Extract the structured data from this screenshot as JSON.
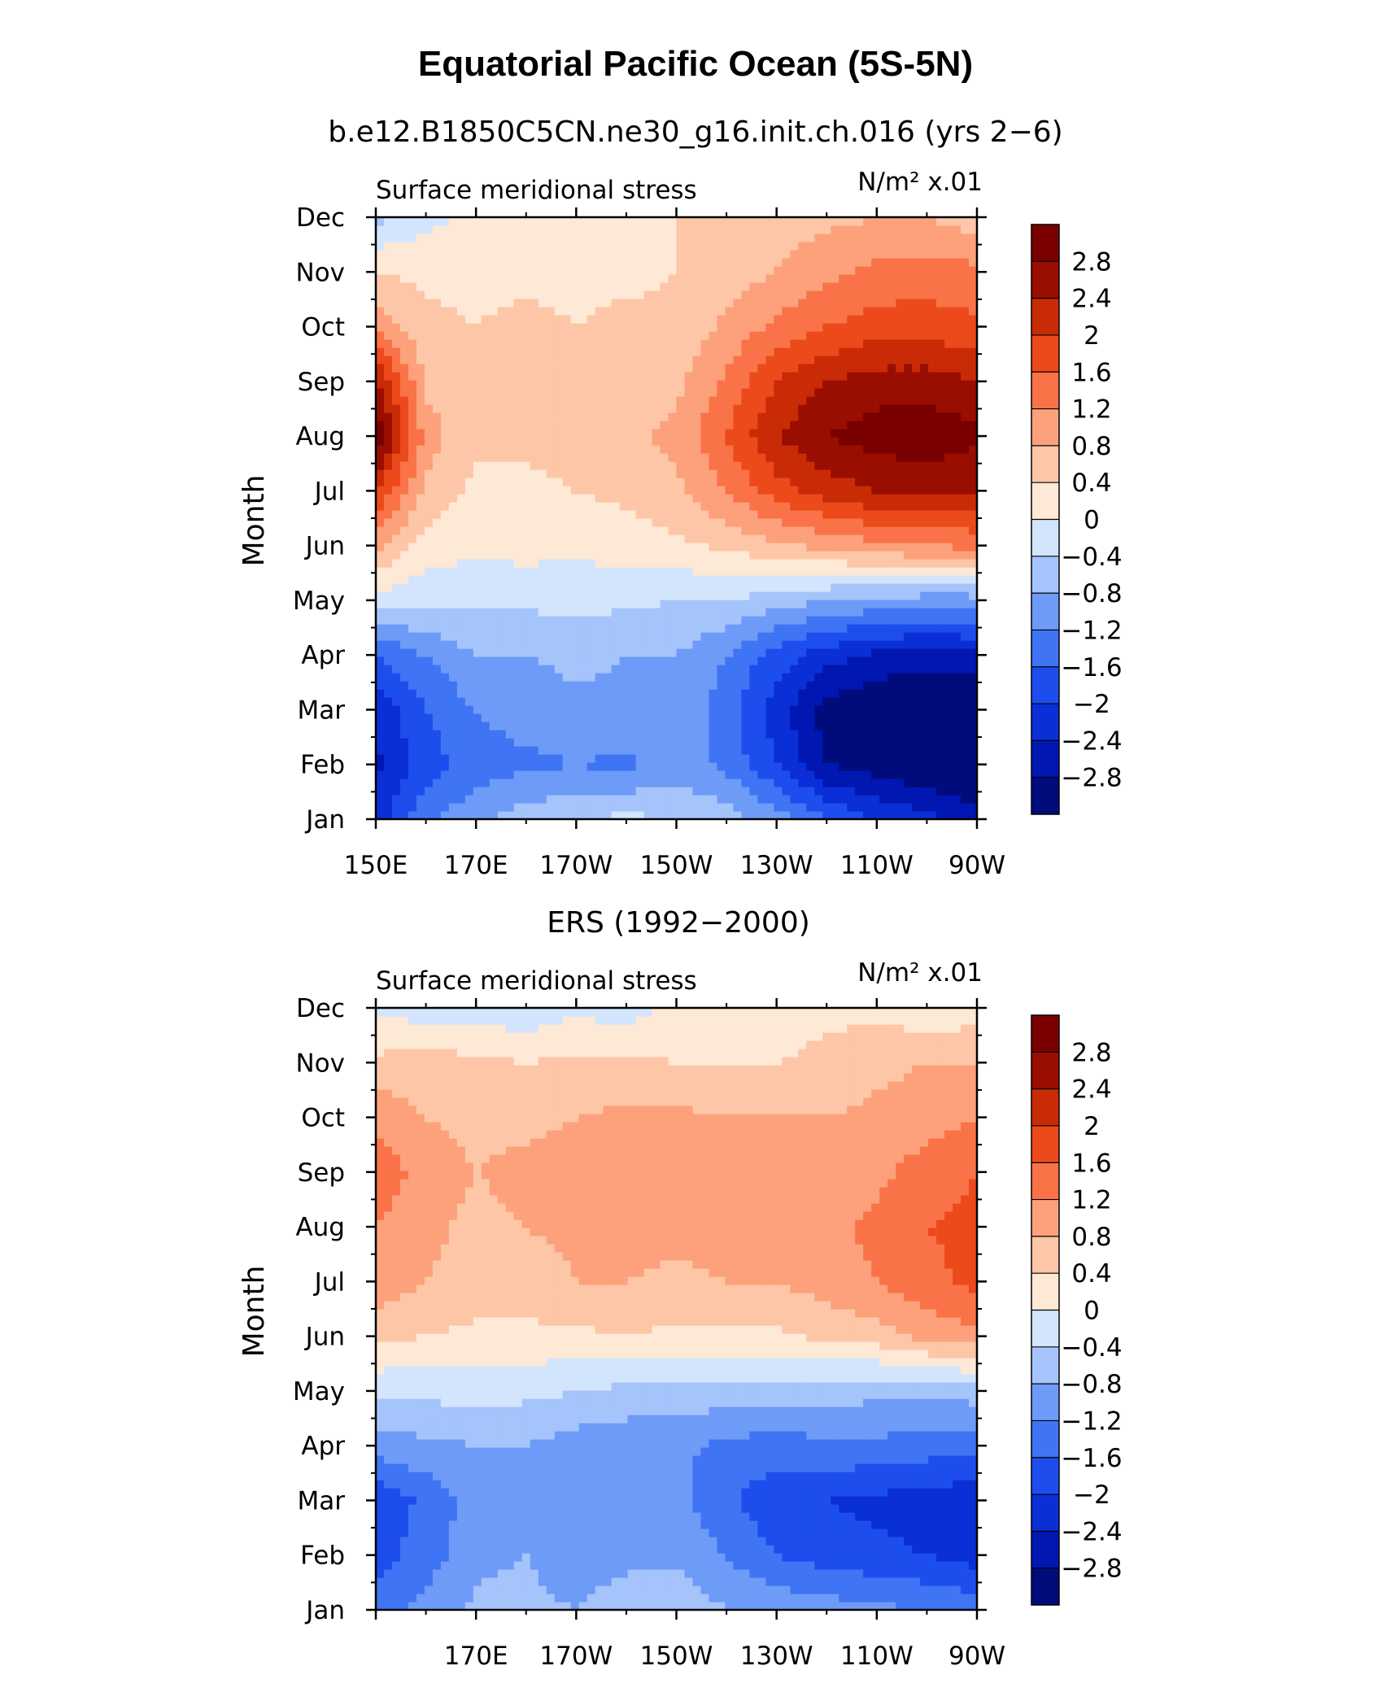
{
  "title": "Equatorial Pacific Ocean (5S-5N)",
  "palette": [
    "#000c7c",
    "#0017b2",
    "#0a2fd6",
    "#1d4eed",
    "#3f75f4",
    "#6e9bf8",
    "#a5c4fb",
    "#d3e5fd",
    "#fee8d6",
    "#fdc6a7",
    "#fca17b",
    "#fa7348",
    "#ec4a1b",
    "#c92b06",
    "#990e00",
    "#7a0000"
  ],
  "colorbar": {
    "labels": [
      "2.8",
      "2.4",
      "2",
      "1.6",
      "1.2",
      "0.8",
      "0.4",
      "0",
      "−0.4",
      "−0.8",
      "−1.2",
      "−1.6",
      "−2",
      "−2.4",
      "−2.8"
    ]
  },
  "chart_data": [
    {
      "type": "heatmap",
      "title": "b.e12.B1850C5CN.ne30_g16.init.ch.016 (yrs 2−6)",
      "left_label": "Surface meridional stress",
      "units_label": "N/m² x.01",
      "ylabel": "Month",
      "x_ticks": [
        "150E",
        "170E",
        "170W",
        "150W",
        "130W",
        "110W",
        "90W"
      ],
      "y_ticks": [
        "Jan",
        "Feb",
        "Mar",
        "Apr",
        "May",
        "Jun",
        "Jul",
        "Aug",
        "Sep",
        "Oct",
        "Nov",
        "Dec"
      ],
      "x_deg": [
        150,
        160,
        170,
        180,
        190,
        200,
        210,
        220,
        230,
        240,
        250,
        260,
        270
      ],
      "values": [
        [
          -2.2,
          -1.3,
          -0.9,
          -0.6,
          -0.4,
          -0.3,
          -0.4,
          -0.6,
          -1.0,
          -1.6,
          -2.0,
          -2.3,
          -2.6
        ],
        [
          -2.5,
          -1.8,
          -1.4,
          -1.3,
          -1.2,
          -1.3,
          -1.0,
          -1.3,
          -2.0,
          -2.8,
          -3.0,
          -3.2,
          -3.3
        ],
        [
          -2.3,
          -1.6,
          -1.2,
          -1.0,
          -0.9,
          -0.9,
          -0.9,
          -1.4,
          -2.2,
          -3.0,
          -3.2,
          -3.4,
          -3.4
        ],
        [
          -1.6,
          -1.2,
          -0.8,
          -0.8,
          -0.7,
          -0.8,
          -0.8,
          -1.2,
          -1.8,
          -2.2,
          -2.5,
          -2.6,
          -2.5
        ],
        [
          -0.2,
          -0.3,
          -0.3,
          -0.3,
          -0.3,
          -0.3,
          -0.4,
          -0.4,
          -0.6,
          -0.8,
          -0.9,
          -1.0,
          -1.0
        ],
        [
          0.9,
          0.2,
          0.1,
          0.15,
          0.1,
          0.2,
          0.3,
          0.5,
          0.7,
          0.9,
          1.1,
          1.2,
          1.3
        ],
        [
          2.0,
          0.7,
          0.3,
          0.3,
          0.4,
          0.5,
          0.7,
          1.2,
          1.8,
          2.2,
          2.4,
          2.5,
          2.4
        ],
        [
          3.2,
          1.0,
          0.5,
          0.5,
          0.6,
          0.7,
          0.9,
          1.6,
          2.4,
          2.8,
          3.0,
          3.1,
          2.9
        ],
        [
          2.5,
          0.7,
          0.5,
          0.5,
          0.5,
          0.6,
          0.7,
          1.3,
          2.0,
          2.4,
          2.6,
          2.6,
          2.4
        ],
        [
          1.1,
          0.5,
          0.4,
          0.5,
          0.4,
          0.5,
          0.5,
          0.9,
          1.3,
          1.6,
          1.8,
          1.8,
          1.7
        ],
        [
          0.4,
          0.3,
          0.3,
          0.3,
          0.3,
          0.3,
          0.4,
          0.6,
          0.8,
          1.1,
          1.3,
          1.4,
          1.3
        ],
        [
          -0.5,
          -0.1,
          0.1,
          0.2,
          0.2,
          0.3,
          0.4,
          0.5,
          0.6,
          0.7,
          0.8,
          0.8,
          0.6
        ]
      ]
    },
    {
      "type": "heatmap",
      "title": "ERS (1992−2000)",
      "left_label": "Surface meridional stress",
      "units_label": "N/m² x.01",
      "ylabel": "Month",
      "x_ticks": [
        "170E",
        "170W",
        "150W",
        "130W",
        "110W",
        "90W"
      ],
      "y_ticks": [
        "Jan",
        "Feb",
        "Mar",
        "Apr",
        "May",
        "Jun",
        "Jul",
        "Aug",
        "Sep",
        "Oct",
        "Nov",
        "Dec"
      ],
      "x_deg": [
        150,
        160,
        170,
        180,
        190,
        200,
        210,
        220,
        230,
        240,
        250,
        260,
        270
      ],
      "values": [
        [
          -1.3,
          -1.1,
          -0.7,
          -0.7,
          -0.8,
          -0.6,
          -0.5,
          -0.8,
          -0.9,
          -1.0,
          -1.1,
          -1.2,
          -1.3
        ],
        [
          -1.8,
          -1.4,
          -0.9,
          -0.8,
          -1.0,
          -0.9,
          -0.9,
          -1.2,
          -1.6,
          -1.8,
          -1.9,
          -2.0,
          -2.2
        ],
        [
          -1.9,
          -1.5,
          -1.0,
          -0.9,
          -1.0,
          -1.0,
          -1.1,
          -1.5,
          -1.9,
          -2.0,
          -2.1,
          -2.2,
          -2.3
        ],
        [
          -1.0,
          -0.9,
          -0.8,
          -0.8,
          -1.0,
          -1.1,
          -1.1,
          -1.3,
          -1.4,
          -1.3,
          -1.3,
          -1.4,
          -1.5
        ],
        [
          -0.3,
          -0.3,
          -0.2,
          -0.3,
          -0.4,
          -0.5,
          -0.5,
          -0.6,
          -0.6,
          -0.6,
          -0.7,
          -0.7,
          -0.6
        ],
        [
          0.5,
          0.4,
          0.3,
          0.3,
          0.3,
          0.4,
          0.3,
          0.3,
          0.3,
          0.5,
          0.6,
          0.9,
          1.1
        ],
        [
          1.1,
          0.8,
          0.6,
          0.6,
          0.8,
          0.8,
          0.7,
          0.8,
          0.8,
          1.0,
          1.2,
          1.5,
          1.7
        ],
        [
          1.2,
          0.9,
          0.7,
          0.8,
          0.9,
          1.0,
          0.9,
          1.0,
          1.0,
          1.1,
          1.3,
          1.6,
          1.7
        ],
        [
          1.5,
          1.0,
          0.8,
          0.9,
          1.0,
          1.0,
          1.0,
          1.0,
          1.0,
          1.0,
          1.1,
          1.4,
          1.6
        ],
        [
          1.1,
          0.8,
          0.7,
          0.7,
          0.8,
          0.9,
          0.9,
          0.8,
          0.8,
          0.8,
          0.9,
          1.0,
          1.2
        ],
        [
          0.5,
          0.6,
          0.5,
          0.4,
          0.5,
          0.5,
          0.4,
          0.4,
          0.4,
          0.5,
          0.7,
          0.8,
          0.8
        ],
        [
          -0.1,
          -0.2,
          -0.2,
          -0.3,
          -0.1,
          -0.2,
          0.1,
          0.1,
          0.2,
          0.3,
          0.3,
          0.1,
          0.2
        ]
      ]
    }
  ]
}
